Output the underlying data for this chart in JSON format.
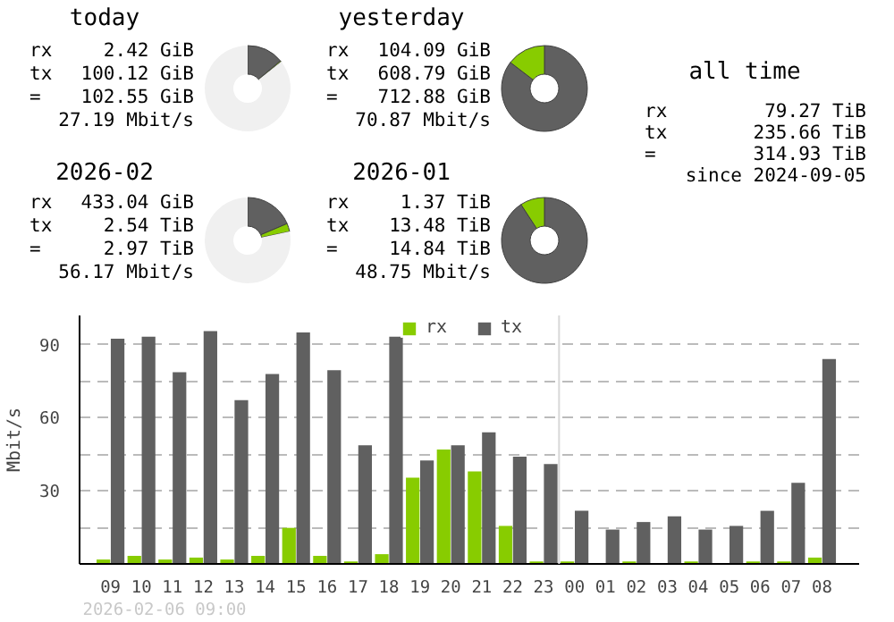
{
  "chart_data": [
    {
      "type": "donut",
      "title": "today",
      "categories": [
        null,
        null,
        null
      ],
      "values": [
        13.9,
        0.4,
        85.7
      ],
      "colors": [
        "#606060",
        "#88cc00",
        "#f0f0f0"
      ],
      "annotations": [
        "rx 2.42 GiB",
        "tx 100.12 GiB",
        "= 102.55 GiB",
        "27.19 Mbit/s"
      ]
    },
    {
      "type": "donut",
      "title": "yesterday",
      "categories": [
        null,
        null
      ],
      "values": [
        85.4,
        14.6
      ],
      "colors": [
        "#606060",
        "#88cc00"
      ],
      "annotations": [
        "rx 104.09 GiB",
        "tx 608.79 GiB",
        "= 712.88 GiB",
        "70.87 Mbit/s"
      ]
    },
    {
      "type": "other",
      "title": "all time",
      "annotations": [
        "rx 79.27 TiB",
        "tx 235.66 TiB",
        "= 314.93 TiB",
        "since 2024-09-05"
      ]
    },
    {
      "type": "donut",
      "title": "2026-02",
      "categories": [
        null,
        null,
        null
      ],
      "values": [
        18.6,
        3.1,
        78.3
      ],
      "colors": [
        "#606060",
        "#88cc00",
        "#f0f0f0"
      ],
      "annotations": [
        "rx 433.04 GiB",
        "tx 2.54 TiB",
        "= 2.97 TiB",
        "56.17 Mbit/s"
      ]
    },
    {
      "type": "donut",
      "title": "2026-01",
      "categories": [
        null,
        null
      ],
      "values": [
        90.8,
        9.2
      ],
      "colors": [
        "#606060",
        "#88cc00"
      ],
      "annotations": [
        "rx 1.37 TiB",
        "tx 13.48 TiB",
        "= 14.84 TiB",
        "48.75 Mbit/s"
      ]
    },
    {
      "type": "bar",
      "categories": [
        "09",
        "10",
        "11",
        "12",
        "13",
        "14",
        "15",
        "16",
        "17",
        "18",
        "19",
        "20",
        "21",
        "22",
        "23",
        "00",
        "01",
        "02",
        "03",
        "04",
        "05",
        "06",
        "07",
        "08"
      ],
      "series": [
        {
          "name": "rx",
          "color": "#88cc00",
          "values": [
            1.8,
            3.3,
            1.8,
            2.6,
            1.8,
            3.3,
            14.8,
            3.3,
            1,
            4,
            35.4,
            47,
            38,
            15.6,
            1,
            1,
            0,
            1,
            0,
            1,
            0,
            1,
            1,
            2.6
          ]
        },
        {
          "name": "tx",
          "color": "#606060",
          "values": [
            92.5,
            93.3,
            78.7,
            95.6,
            67.2,
            78,
            95,
            79.5,
            48.7,
            93.3,
            42.5,
            48.7,
            54,
            44,
            41,
            21.8,
            14.1,
            17.2,
            19.5,
            14.1,
            15.6,
            21.8,
            33.3,
            84.1
          ]
        }
      ],
      "ylabel": "Mbit/s",
      "ylim": [
        0,
        102
      ],
      "yticks": [
        {
          "value": 15,
          "label": null
        },
        30,
        {
          "value": 45,
          "label": null
        },
        60,
        {
          "value": 75,
          "label": null
        },
        90
      ],
      "grid": "y",
      "legend": "top",
      "ref_lines": [
        {
          "axis": "x",
          "value": "00",
          "color": "#d8d8d8"
        }
      ],
      "annotations": [
        "2026-02-06 09:00"
      ]
    }
  ]
}
